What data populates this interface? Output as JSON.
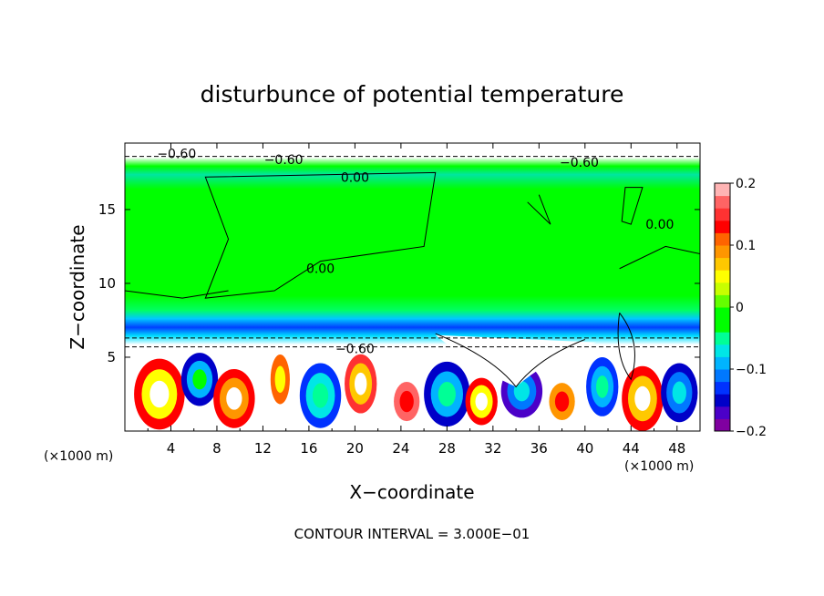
{
  "chart_data": {
    "type": "heatmap",
    "title": "disturbunce of potential temperature",
    "xlabel": "X−coordinate",
    "ylabel": "Z−coordinate",
    "x_unit_left": "(×1000 m)",
    "x_unit_right": "(×1000 m)",
    "footer": "CONTOUR INTERVAL = 3.000E−01",
    "xlim": [
      0,
      50
    ],
    "ylim": [
      0,
      19.5
    ],
    "x_ticks": [
      4,
      8,
      12,
      16,
      20,
      24,
      28,
      32,
      36,
      40,
      44,
      48
    ],
    "y_ticks": [
      5,
      10,
      15
    ],
    "colorbar": {
      "range": [
        -0.2,
        0.2
      ],
      "ticks": [
        {
          "value": 0.2,
          "label": "0.2"
        },
        {
          "value": 0.1,
          "label": "0.1"
        },
        {
          "value": 0,
          "label": "0"
        },
        {
          "value": -0.1,
          "label": "−0.1"
        },
        {
          "value": -0.2,
          "label": "−0.2"
        }
      ],
      "colors": [
        "#8000a0",
        "#4b00c8",
        "#0000c8",
        "#0032ff",
        "#0078ff",
        "#00b4ff",
        "#00e6e6",
        "#00ff96",
        "#00ff00",
        "#00ff00",
        "#64ff00",
        "#c8ff00",
        "#ffff00",
        "#ffc800",
        "#ff9600",
        "#ff6400",
        "#ff0000",
        "#ff3232",
        "#ff6464",
        "#ffb4b4"
      ]
    },
    "contour_labels": [
      {
        "text": "0.00",
        "x": 20,
        "z": 17.2
      },
      {
        "text": "0.00",
        "x": 17,
        "z": 11
      },
      {
        "text": "0.00",
        "x": 46.5,
        "z": 14
      },
      {
        "text": "−0.60",
        "x": 20,
        "z": 5.6
      },
      {
        "text": "−0.60",
        "x": 4.5,
        "z": 18.8
      },
      {
        "text": "−0.60",
        "x": 13.8,
        "z": 18.4
      },
      {
        "text": "−0.60",
        "x": 39.5,
        "z": 18.2
      }
    ]
  }
}
